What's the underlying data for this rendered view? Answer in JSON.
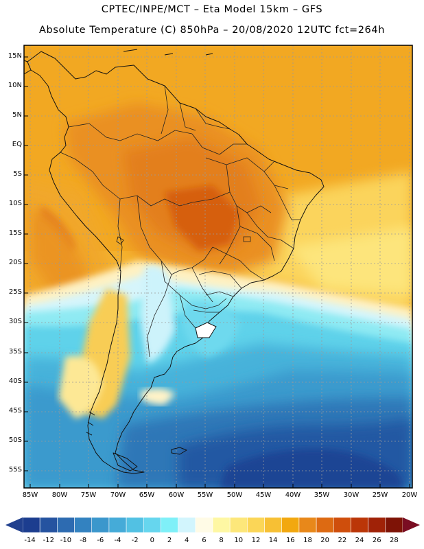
{
  "header": {
    "line1": "CPTEC/INPE/MCT –  Eta Model 15km – GFS",
    "line2": "Absolute Temperature (C) 850hPa – 20/08/2020 12UTC fct=264h"
  },
  "map": {
    "region": "South America",
    "lat_labels": [
      "15N",
      "10N",
      "5N",
      "EQ",
      "5S",
      "10S",
      "15S",
      "20S",
      "25S",
      "30S",
      "35S",
      "40S",
      "45S",
      "50S",
      "55S"
    ],
    "lon_labels": [
      "85W",
      "80W",
      "75W",
      "70W",
      "65W",
      "60W",
      "55W",
      "50W",
      "45W",
      "40W",
      "35W",
      "30W",
      "25W",
      "20W"
    ],
    "lat_range": [
      -58,
      17
    ],
    "lon_range": [
      -86,
      -19
    ]
  },
  "colorbar": {
    "labels": [
      "-14",
      "-12",
      "-10",
      "-8",
      "-6",
      "-4",
      "-2",
      "0",
      "2",
      "4",
      "6",
      "8",
      "10",
      "12",
      "14",
      "16",
      "18",
      "20",
      "22",
      "24",
      "26",
      "28"
    ],
    "colors": [
      "#1c3d8f",
      "#2553a0",
      "#2d6bb1",
      "#3382c0",
      "#3b97cc",
      "#45abd8",
      "#52c1e3",
      "#66d6ee",
      "#7ff0f8",
      "#d2f5fd",
      "#fffbe6",
      "#fef7a3",
      "#fde77a",
      "#fbd657",
      "#f7c034",
      "#f2a80f",
      "#e8881a",
      "#dd6a12",
      "#cf4e0c",
      "#bb3608",
      "#a02207",
      "#7e1306"
    ],
    "end_low": "#21408e",
    "end_high": "#7a0d22"
  },
  "colors": {
    "ocean_warm": "#f5b32a",
    "land_warm": "#eb9726",
    "hot_core": "#d85f10",
    "cold_deep": "#21408e"
  }
}
